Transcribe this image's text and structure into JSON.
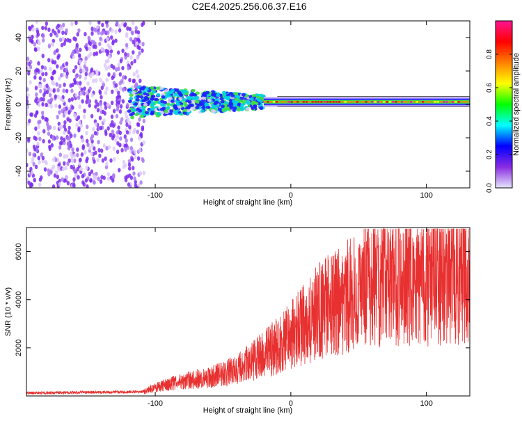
{
  "title": "C2E4.2025.256.06.37.E16",
  "chart_data": [
    {
      "type": "heatmap",
      "xlabel": "Height of straight line (km)",
      "ylabel": "Frequency (Hz)",
      "xlim": [
        -195,
        132
      ],
      "ylim": [
        -50,
        50
      ],
      "xticks": [
        -100,
        0,
        100
      ],
      "xtick_labels": [
        "-100",
        "0",
        "100"
      ],
      "yticks": [
        -40,
        -20,
        0,
        20,
        40
      ],
      "ytick_labels": [
        "-40",
        "-20",
        "0",
        "20",
        "40"
      ],
      "grid": false,
      "colorbar": {
        "label": "Normalized spectral amplitude",
        "range": [
          0.0,
          1.0
        ],
        "ticks": [
          0.0,
          0.2,
          0.4,
          0.6,
          0.8
        ],
        "tick_labels": [
          "0.0",
          "0.2",
          "0.4",
          "0.6",
          "0.8"
        ],
        "colormap": "rainbow",
        "colors": [
          "#e6e6fa",
          "#8a2be2",
          "#0000ff",
          "#00ffff",
          "#00ff00",
          "#ffff00",
          "#ff8000",
          "#ff0000",
          "#ff1493"
        ]
      },
      "regions": [
        {
          "name": "noise",
          "x_range": [
            -195,
            -108
          ],
          "freq_range": [
            -50,
            50
          ],
          "amplitude": 0.15
        },
        {
          "name": "transition",
          "x_range": [
            -120,
            -20
          ],
          "center_freq": 1.5,
          "spread_hz": 8,
          "amplitude": 0.35
        },
        {
          "name": "tone",
          "x_range": [
            -20,
            132
          ],
          "center_freq": 1.5,
          "spread_hz": 1.5,
          "amplitude": 0.9
        }
      ]
    },
    {
      "type": "line",
      "xlabel": "Height of straight line (km)",
      "ylabel": "SNR (10 * v/v)",
      "xlim": [
        -195,
        132
      ],
      "ylim": [
        0,
        7000
      ],
      "xticks": [
        -100,
        0,
        100
      ],
      "xtick_labels": [
        "-100",
        "0",
        "100"
      ],
      "yticks": [
        2000,
        4000,
        6000
      ],
      "ytick_labels": [
        "2000",
        "4000",
        "6000"
      ],
      "grid": false,
      "series": [
        {
          "name": "SNR",
          "color": "#e83030",
          "x": [
            -195,
            -150,
            -110,
            -100,
            -80,
            -60,
            -40,
            -20,
            -10,
            0,
            10,
            20,
            30,
            40,
            50,
            60,
            70,
            80,
            90,
            100,
            110,
            120,
            132
          ],
          "values": [
            150,
            180,
            200,
            450,
            800,
            1000,
            1400,
            2200,
            2700,
            3200,
            3900,
            4500,
            4900,
            5300,
            5500,
            6000,
            6200,
            6300,
            6350,
            6300,
            6350,
            6400,
            6300
          ]
        }
      ]
    }
  ]
}
